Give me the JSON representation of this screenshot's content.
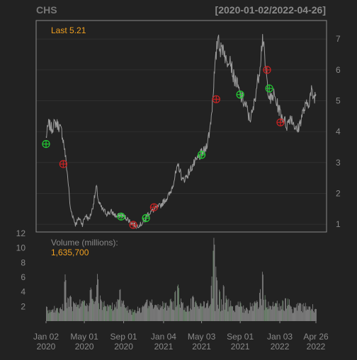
{
  "colors": {
    "background": "#222222",
    "panel_border": "#8a8a8a",
    "grid": "#2f2f2f",
    "axis_text": "#8a8a8a",
    "title_text": "#777777",
    "price_line": "#9a9a9a",
    "volume_bar": "#8a8a8a",
    "volume_bar_alt": "#6f8f6f",
    "last_label": "#f0a020",
    "buy_marker": "#22cc33",
    "sell_marker": "#cc2222"
  },
  "chart_data": {
    "type": "line",
    "symbol": "CHS",
    "date_range": "[2020-01-02/2022-04-26]",
    "last_label": "Last 5.21",
    "volume_label": "Volume (millions):",
    "volume_value": "1,635,700",
    "price_axis": {
      "ylim": [
        0.75,
        7.6
      ],
      "ticks": [
        1,
        2,
        3,
        4,
        5,
        6,
        7
      ]
    },
    "volume_axis": {
      "ylim": [
        0,
        12
      ],
      "ticks": [
        2,
        4,
        6,
        8,
        10,
        12
      ]
    },
    "x_axis": {
      "start": "2020-01-02",
      "end": "2022-04-26",
      "ticks": [
        {
          "date": "2020-01-02",
          "line1": "Jan 02",
          "line2": "2020"
        },
        {
          "date": "2020-05-01",
          "line1": "May 01",
          "line2": "2020"
        },
        {
          "date": "2020-09-01",
          "line1": "Sep 01",
          "line2": "2020"
        },
        {
          "date": "2021-01-04",
          "line1": "Jan 04",
          "line2": "2021"
        },
        {
          "date": "2021-05-03",
          "line1": "May 03",
          "line2": "2021"
        },
        {
          "date": "2021-09-01",
          "line1": "Sep 01",
          "line2": "2021"
        },
        {
          "date": "2022-01-03",
          "line1": "Jan 03",
          "line2": "2022"
        },
        {
          "date": "2022-04-26",
          "line1": "Apr 26",
          "line2": "2022"
        }
      ]
    },
    "price_series": [
      [
        "2020-01-02",
        3.8
      ],
      [
        "2020-01-10",
        4.25
      ],
      [
        "2020-01-20",
        4.1
      ],
      [
        "2020-01-31",
        4.3
      ],
      [
        "2020-02-10",
        4.2
      ],
      [
        "2020-02-20",
        4.0
      ],
      [
        "2020-02-27",
        3.6
      ],
      [
        "2020-03-05",
        3.0
      ],
      [
        "2020-03-12",
        2.3
      ],
      [
        "2020-03-18",
        1.5
      ],
      [
        "2020-03-25",
        1.3
      ],
      [
        "2020-04-03",
        1.0
      ],
      [
        "2020-04-15",
        1.2
      ],
      [
        "2020-04-25",
        1.0
      ],
      [
        "2020-05-05",
        1.3
      ],
      [
        "2020-05-15",
        1.15
      ],
      [
        "2020-05-25",
        1.45
      ],
      [
        "2020-06-08",
        2.2
      ],
      [
        "2020-06-15",
        1.7
      ],
      [
        "2020-06-25",
        1.5
      ],
      [
        "2020-07-10",
        1.35
      ],
      [
        "2020-07-25",
        1.4
      ],
      [
        "2020-08-10",
        1.25
      ],
      [
        "2020-08-25",
        1.3
      ],
      [
        "2020-09-10",
        1.2
      ],
      [
        "2020-09-25",
        1.05
      ],
      [
        "2020-10-10",
        0.95
      ],
      [
        "2020-10-25",
        1.0
      ],
      [
        "2020-11-05",
        1.1
      ],
      [
        "2020-11-12",
        1.3
      ],
      [
        "2020-11-25",
        1.4
      ],
      [
        "2020-12-10",
        1.5
      ],
      [
        "2020-12-25",
        1.6
      ],
      [
        "2021-01-10",
        1.8
      ],
      [
        "2021-01-25",
        2.0
      ],
      [
        "2021-02-10",
        2.6
      ],
      [
        "2021-02-20",
        2.9
      ],
      [
        "2021-03-05",
        2.4
      ],
      [
        "2021-03-20",
        2.6
      ],
      [
        "2021-04-05",
        2.9
      ],
      [
        "2021-04-20",
        3.1
      ],
      [
        "2021-05-03",
        3.3
      ],
      [
        "2021-05-15",
        3.4
      ],
      [
        "2021-05-28",
        4.0
      ],
      [
        "2021-06-05",
        4.8
      ],
      [
        "2021-06-10",
        5.6
      ],
      [
        "2021-06-18",
        6.5
      ],
      [
        "2021-06-24",
        7.2
      ],
      [
        "2021-07-01",
        6.6
      ],
      [
        "2021-07-10",
        6.8
      ],
      [
        "2021-07-20",
        6.2
      ],
      [
        "2021-07-30",
        6.5
      ],
      [
        "2021-08-10",
        5.8
      ],
      [
        "2021-08-20",
        5.6
      ],
      [
        "2021-08-31",
        5.2
      ],
      [
        "2021-09-10",
        5.0
      ],
      [
        "2021-09-20",
        4.8
      ],
      [
        "2021-09-30",
        4.4
      ],
      [
        "2021-10-10",
        4.6
      ],
      [
        "2021-10-20",
        5.3
      ],
      [
        "2021-10-30",
        5.9
      ],
      [
        "2021-11-05",
        6.5
      ],
      [
        "2021-11-10",
        7.1
      ],
      [
        "2021-11-18",
        6.2
      ],
      [
        "2021-11-25",
        5.5
      ],
      [
        "2021-12-05",
        5.0
      ],
      [
        "2021-12-15",
        5.2
      ],
      [
        "2021-12-25",
        4.9
      ],
      [
        "2022-01-05",
        4.6
      ],
      [
        "2022-01-15",
        4.4
      ],
      [
        "2022-01-25",
        4.2
      ],
      [
        "2022-02-05",
        4.5
      ],
      [
        "2022-02-15",
        4.3
      ],
      [
        "2022-02-25",
        4.0
      ],
      [
        "2022-03-05",
        4.2
      ],
      [
        "2022-03-15",
        4.6
      ],
      [
        "2022-03-25",
        4.8
      ],
      [
        "2022-04-05",
        5.0
      ],
      [
        "2022-04-12",
        5.3
      ],
      [
        "2022-04-19",
        5.1
      ],
      [
        "2022-04-26",
        5.21
      ]
    ],
    "volume_series": [
      [
        "2020-01-02",
        2.0
      ],
      [
        "2020-01-20",
        1.5
      ],
      [
        "2020-02-05",
        1.8
      ],
      [
        "2020-02-20",
        1.6
      ],
      [
        "2020-03-01",
        6.4
      ],
      [
        "2020-03-10",
        3.0
      ],
      [
        "2020-03-18",
        3.5
      ],
      [
        "2020-03-28",
        2.5
      ],
      [
        "2020-04-10",
        2.2
      ],
      [
        "2020-04-25",
        2.8
      ],
      [
        "2020-05-05",
        2.0
      ],
      [
        "2020-05-20",
        4.6
      ],
      [
        "2020-06-05",
        2.6
      ],
      [
        "2020-06-10",
        6.5
      ],
      [
        "2020-06-20",
        3.0
      ],
      [
        "2020-07-05",
        2.0
      ],
      [
        "2020-07-20",
        2.2
      ],
      [
        "2020-08-05",
        1.8
      ],
      [
        "2020-08-20",
        4.5
      ],
      [
        "2020-09-05",
        1.8
      ],
      [
        "2020-09-20",
        1.6
      ],
      [
        "2020-10-05",
        1.5
      ],
      [
        "2020-10-20",
        1.8
      ],
      [
        "2020-11-02",
        2.0
      ],
      [
        "2020-11-12",
        3.0
      ],
      [
        "2020-11-25",
        2.5
      ],
      [
        "2020-12-10",
        2.2
      ],
      [
        "2020-12-28",
        2.0
      ],
      [
        "2021-01-10",
        2.5
      ],
      [
        "2021-01-25",
        3.0
      ],
      [
        "2021-02-08",
        4.0
      ],
      [
        "2021-02-18",
        5.0
      ],
      [
        "2021-03-01",
        2.5
      ],
      [
        "2021-03-20",
        2.0
      ],
      [
        "2021-04-05",
        3.5
      ],
      [
        "2021-04-20",
        2.0
      ],
      [
        "2021-05-05",
        2.0
      ],
      [
        "2021-05-20",
        2.5
      ],
      [
        "2021-06-02",
        5.0
      ],
      [
        "2021-06-10",
        11.7
      ],
      [
        "2021-06-18",
        6.0
      ],
      [
        "2021-06-28",
        4.0
      ],
      [
        "2021-07-10",
        5.0
      ],
      [
        "2021-07-20",
        3.0
      ],
      [
        "2021-08-05",
        2.0
      ],
      [
        "2021-08-20",
        2.2
      ],
      [
        "2021-09-05",
        2.0
      ],
      [
        "2021-09-20",
        1.8
      ],
      [
        "2021-10-05",
        2.0
      ],
      [
        "2021-10-20",
        2.5
      ],
      [
        "2021-11-01",
        4.0
      ],
      [
        "2021-11-09",
        7.0
      ],
      [
        "2021-11-18",
        3.0
      ],
      [
        "2021-12-05",
        2.0
      ],
      [
        "2021-12-20",
        2.5
      ],
      [
        "2022-01-05",
        2.0
      ],
      [
        "2022-01-20",
        3.2
      ],
      [
        "2022-02-05",
        2.0
      ],
      [
        "2022-02-20",
        1.8
      ],
      [
        "2022-03-05",
        2.5
      ],
      [
        "2022-03-20",
        2.0
      ],
      [
        "2022-04-05",
        2.0
      ],
      [
        "2022-04-26",
        1.64
      ]
    ],
    "buy_signals": [
      [
        "2020-01-02",
        3.6
      ],
      [
        "2020-08-24",
        1.25
      ],
      [
        "2020-11-10",
        1.2
      ],
      [
        "2021-05-03",
        3.25
      ],
      [
        "2021-09-01",
        5.2
      ],
      [
        "2021-12-01",
        5.4
      ]
    ],
    "sell_signals": [
      [
        "2020-02-25",
        2.95
      ],
      [
        "2020-10-01",
        0.98
      ],
      [
        "2020-12-05",
        1.55
      ],
      [
        "2021-06-18",
        5.05
      ],
      [
        "2021-11-24",
        6.0
      ],
      [
        "2022-01-05",
        4.3
      ]
    ]
  }
}
